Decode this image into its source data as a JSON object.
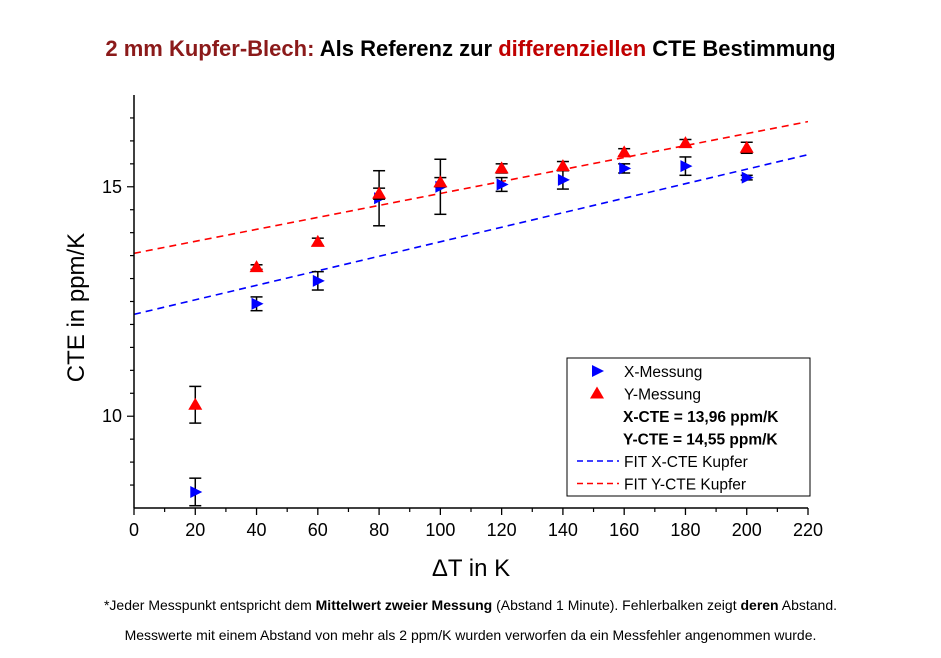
{
  "title": {
    "part1": "2 mm Kupfer-Blech:",
    "part2": " Als Referenz zur ",
    "part3": "differenziellen",
    "part4": " CTE Bestimmung"
  },
  "notes": {
    "line1_a": "*Jeder Messpunkt entspricht dem ",
    "line1_b": "Mittelwert zweier Messung",
    "line1_c": " (Abstand 1 Minute). Fehlerbalken zeigt ",
    "line1_d": "deren",
    "line1_e": " Abstand.",
    "line2": "Messwerte mit einem Abstand von mehr als 2 ppm/K wurden verworfen da ein Messfehler angenommen wurde."
  },
  "chart_data": {
    "type": "scatter",
    "xlabel": "ΔT in K",
    "ylabel": "CTE in ppm/K",
    "xlim": [
      0,
      220
    ],
    "ylim": [
      8,
      17
    ],
    "xticks": [
      0,
      20,
      40,
      60,
      80,
      100,
      120,
      140,
      160,
      180,
      200,
      220
    ],
    "yticks": [
      10,
      15
    ],
    "grid": false,
    "legend_position": "bottom-right",
    "series": [
      {
        "name": "X-Messung",
        "marker": "triangle-right",
        "color": "#0000ff",
        "x": [
          20,
          40,
          60,
          80,
          100,
          120,
          140,
          160,
          180,
          200
        ],
        "y": [
          8.35,
          12.45,
          12.95,
          14.75,
          15.0,
          15.05,
          15.15,
          15.4,
          15.45,
          15.2
        ],
        "err": [
          0.3,
          0.15,
          0.2,
          0.6,
          0.6,
          0.15,
          0.2,
          0.1,
          0.2,
          0.05
        ]
      },
      {
        "name": "Y-Messung",
        "marker": "triangle-up",
        "color": "#ff0000",
        "x": [
          20,
          40,
          60,
          80,
          100,
          120,
          140,
          160,
          180,
          200
        ],
        "y": [
          10.25,
          13.25,
          13.8,
          14.85,
          15.1,
          15.4,
          15.45,
          15.75,
          15.95,
          15.85
        ],
        "err": [
          0.4,
          0.05,
          0.08,
          0.12,
          0.1,
          0.1,
          0.1,
          0.08,
          0.08,
          0.12
        ]
      }
    ],
    "fits": [
      {
        "name": "FIT X-CTE Kupfer",
        "color": "#0000ff",
        "dash": true,
        "x": [
          0,
          220
        ],
        "y": [
          12.22,
          15.7
        ]
      },
      {
        "name": "FIT Y-CTE Kupfer",
        "color": "#ff0000",
        "dash": true,
        "x": [
          0,
          220
        ],
        "y": [
          13.55,
          16.42
        ]
      }
    ],
    "legend": {
      "entries": [
        {
          "label": "X-Messung",
          "kind": "triangle-right",
          "color": "#0000ff"
        },
        {
          "label": "Y-Messung",
          "kind": "triangle-up",
          "color": "#ff0000"
        },
        {
          "label": "X-CTE = 13,96 ppm/K",
          "kind": "text-bold"
        },
        {
          "label": "Y-CTE = 14,55 ppm/K",
          "kind": "text-bold"
        },
        {
          "label": "FIT X-CTE Kupfer",
          "kind": "dash",
          "color": "#0000ff"
        },
        {
          "label": "FIT Y-CTE Kupfer",
          "kind": "dash",
          "color": "#ff0000"
        }
      ]
    }
  }
}
